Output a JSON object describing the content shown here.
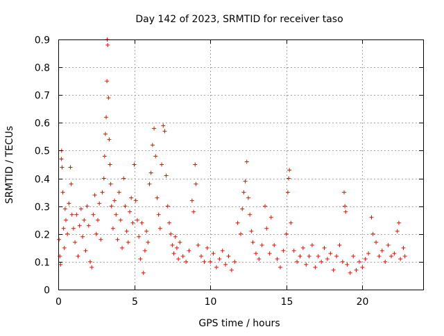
{
  "chart_data": {
    "type": "scatter",
    "title": "Day 142 of 2023, SRMTID for receiver taso",
    "xlabel": "GPS time / hours",
    "ylabel": "SRMTID / TECUs",
    "xlim": [
      0,
      24
    ],
    "ylim": [
      0,
      0.9
    ],
    "x_ticks": [
      0,
      5,
      10,
      15,
      20
    ],
    "y_ticks": [
      0,
      0.1,
      0.2,
      0.3,
      0.4,
      0.5,
      0.6,
      0.7,
      0.8,
      0.9
    ],
    "x_tick_labels": [
      "0",
      "5",
      "10",
      "15",
      "20"
    ],
    "y_tick_labels": [
      "0",
      "0.1",
      "0.2",
      "0.3",
      "0.4",
      "0.5",
      "0.6",
      "0.7",
      "0.8",
      "0.9"
    ],
    "grid": true,
    "marker": "+",
    "color": "#ff0000",
    "series": [
      {
        "name": "SRMTID",
        "points": [
          [
            0.05,
            0.18
          ],
          [
            0.1,
            0.12
          ],
          [
            0.15,
            0.09
          ],
          [
            0.2,
            0.47
          ],
          [
            0.22,
            0.5
          ],
          [
            0.25,
            0.44
          ],
          [
            0.3,
            0.35
          ],
          [
            0.35,
            0.22
          ],
          [
            0.4,
            0.15
          ],
          [
            0.45,
            0.29
          ],
          [
            0.5,
            0.25
          ],
          [
            0.6,
            0.2
          ],
          [
            0.7,
            0.31
          ],
          [
            0.8,
            0.44
          ],
          [
            0.85,
            0.38
          ],
          [
            0.9,
            0.27
          ],
          [
            1.0,
            0.22
          ],
          [
            1.1,
            0.17
          ],
          [
            1.2,
            0.27
          ],
          [
            1.3,
            0.12
          ],
          [
            1.4,
            0.23
          ],
          [
            1.5,
            0.29
          ],
          [
            1.6,
            0.19
          ],
          [
            1.7,
            0.25
          ],
          [
            1.8,
            0.14
          ],
          [
            1.9,
            0.3
          ],
          [
            2.0,
            0.23
          ],
          [
            2.1,
            0.1
          ],
          [
            2.2,
            0.08
          ],
          [
            2.3,
            0.27
          ],
          [
            2.4,
            0.34
          ],
          [
            2.5,
            0.2
          ],
          [
            2.6,
            0.25
          ],
          [
            2.7,
            0.31
          ],
          [
            2.8,
            0.18
          ],
          [
            2.9,
            0.35
          ],
          [
            3.0,
            0.4
          ],
          [
            3.05,
            0.48
          ],
          [
            3.1,
            0.56
          ],
          [
            3.15,
            0.62
          ],
          [
            3.2,
            0.75
          ],
          [
            3.22,
            0.9
          ],
          [
            3.25,
            0.88
          ],
          [
            3.3,
            0.69
          ],
          [
            3.35,
            0.54
          ],
          [
            3.4,
            0.45
          ],
          [
            3.45,
            0.38
          ],
          [
            3.5,
            0.3
          ],
          [
            3.6,
            0.22
          ],
          [
            3.7,
            0.32
          ],
          [
            3.8,
            0.27
          ],
          [
            3.9,
            0.18
          ],
          [
            4.0,
            0.35
          ],
          [
            4.1,
            0.25
          ],
          [
            4.2,
            0.15
          ],
          [
            4.3,
            0.4
          ],
          [
            4.4,
            0.3
          ],
          [
            4.5,
            0.21
          ],
          [
            4.6,
            0.17
          ],
          [
            4.7,
            0.28
          ],
          [
            4.8,
            0.33
          ],
          [
            4.9,
            0.24
          ],
          [
            5.0,
            0.45
          ],
          [
            5.1,
            0.32
          ],
          [
            5.2,
            0.25
          ],
          [
            5.3,
            0.19
          ],
          [
            5.4,
            0.11
          ],
          [
            5.5,
            0.24
          ],
          [
            5.6,
            0.06
          ],
          [
            5.7,
            0.14
          ],
          [
            5.8,
            0.21
          ],
          [
            5.9,
            0.17
          ],
          [
            6.0,
            0.38
          ],
          [
            6.1,
            0.42
          ],
          [
            6.2,
            0.52
          ],
          [
            6.3,
            0.58
          ],
          [
            6.4,
            0.48
          ],
          [
            6.5,
            0.33
          ],
          [
            6.6,
            0.27
          ],
          [
            6.7,
            0.22
          ],
          [
            6.8,
            0.45
          ],
          [
            6.9,
            0.59
          ],
          [
            7.0,
            0.57
          ],
          [
            7.1,
            0.41
          ],
          [
            7.2,
            0.3
          ],
          [
            7.3,
            0.24
          ],
          [
            7.4,
            0.2
          ],
          [
            7.5,
            0.16
          ],
          [
            7.6,
            0.13
          ],
          [
            7.7,
            0.19
          ],
          [
            7.8,
            0.15
          ],
          [
            7.9,
            0.11
          ],
          [
            8.0,
            0.17
          ],
          [
            8.2,
            0.12
          ],
          [
            8.4,
            0.1
          ],
          [
            8.6,
            0.14
          ],
          [
            8.8,
            0.32
          ],
          [
            8.9,
            0.28
          ],
          [
            9.0,
            0.45
          ],
          [
            9.05,
            0.38
          ],
          [
            9.2,
            0.16
          ],
          [
            9.4,
            0.12
          ],
          [
            9.6,
            0.1
          ],
          [
            9.8,
            0.15
          ],
          [
            10.0,
            0.1
          ],
          [
            10.2,
            0.13
          ],
          [
            10.4,
            0.08
          ],
          [
            10.6,
            0.11
          ],
          [
            10.8,
            0.14
          ],
          [
            11.0,
            0.09
          ],
          [
            11.2,
            0.12
          ],
          [
            11.4,
            0.07
          ],
          [
            11.6,
            0.1
          ],
          [
            11.8,
            0.24
          ],
          [
            12.0,
            0.2
          ],
          [
            12.1,
            0.29
          ],
          [
            12.2,
            0.35
          ],
          [
            12.3,
            0.39
          ],
          [
            12.4,
            0.46
          ],
          [
            12.5,
            0.33
          ],
          [
            12.6,
            0.27
          ],
          [
            12.7,
            0.21
          ],
          [
            12.8,
            0.17
          ],
          [
            13.0,
            0.13
          ],
          [
            13.2,
            0.11
          ],
          [
            13.4,
            0.16
          ],
          [
            13.6,
            0.3
          ],
          [
            13.7,
            0.22
          ],
          [
            13.9,
            0.13
          ],
          [
            14.0,
            0.26
          ],
          [
            14.2,
            0.16
          ],
          [
            14.4,
            0.11
          ],
          [
            14.6,
            0.08
          ],
          [
            14.8,
            0.14
          ],
          [
            15.0,
            0.2
          ],
          [
            15.1,
            0.35
          ],
          [
            15.15,
            0.4
          ],
          [
            15.2,
            0.43
          ],
          [
            15.3,
            0.24
          ],
          [
            15.5,
            0.14
          ],
          [
            15.7,
            0.1
          ],
          [
            15.9,
            0.12
          ],
          [
            16.1,
            0.15
          ],
          [
            16.3,
            0.09
          ],
          [
            16.5,
            0.12
          ],
          [
            16.7,
            0.16
          ],
          [
            16.9,
            0.08
          ],
          [
            17.1,
            0.12
          ],
          [
            17.3,
            0.1
          ],
          [
            17.5,
            0.15
          ],
          [
            17.7,
            0.11
          ],
          [
            17.9,
            0.13
          ],
          [
            18.1,
            0.07
          ],
          [
            18.3,
            0.12
          ],
          [
            18.5,
            0.16
          ],
          [
            18.7,
            0.1
          ],
          [
            18.8,
            0.35
          ],
          [
            18.85,
            0.3
          ],
          [
            18.9,
            0.28
          ],
          [
            19.0,
            0.09
          ],
          [
            19.2,
            0.06
          ],
          [
            19.4,
            0.12
          ],
          [
            19.6,
            0.07
          ],
          [
            19.8,
            0.1
          ],
          [
            20.0,
            0.08
          ],
          [
            20.2,
            0.11
          ],
          [
            20.4,
            0.13
          ],
          [
            20.6,
            0.26
          ],
          [
            20.7,
            0.2
          ],
          [
            20.9,
            0.17
          ],
          [
            21.1,
            0.12
          ],
          [
            21.3,
            0.14
          ],
          [
            21.5,
            0.1
          ],
          [
            21.7,
            0.16
          ],
          [
            21.9,
            0.12
          ],
          [
            22.1,
            0.13
          ],
          [
            22.3,
            0.21
          ],
          [
            22.4,
            0.24
          ],
          [
            22.5,
            0.11
          ],
          [
            22.7,
            0.15
          ],
          [
            22.8,
            0.12
          ]
        ]
      }
    ]
  }
}
